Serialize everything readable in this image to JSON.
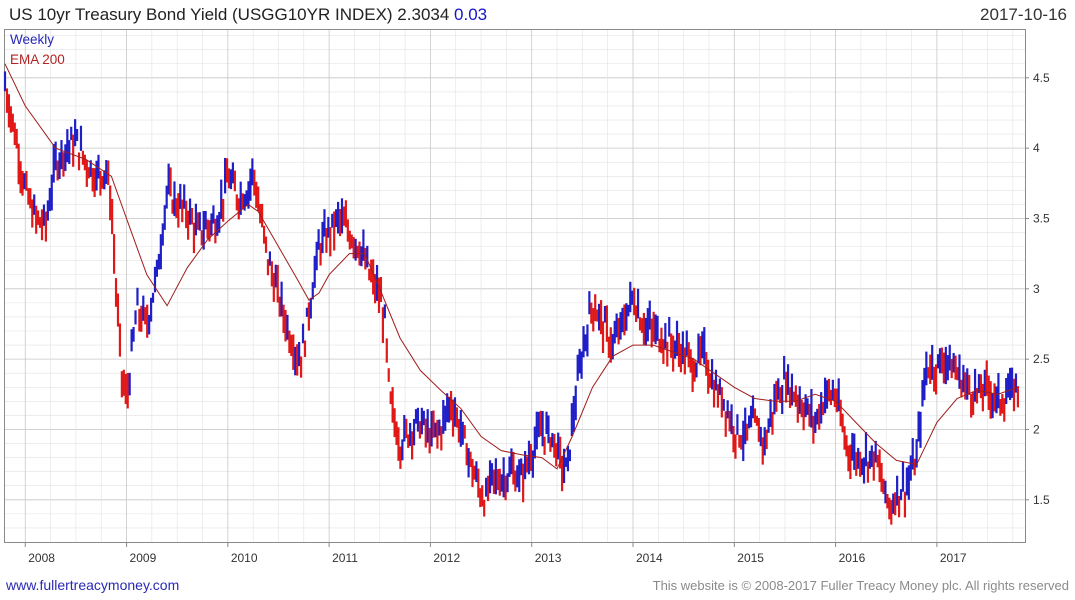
{
  "header": {
    "title": "US 10yr Treasury Bond Yield (USGG10YR INDEX) 2.3034",
    "change": "0.03",
    "date": "2017-10-16"
  },
  "legend": {
    "weekly": "Weekly",
    "ema": "EMA 200"
  },
  "footer": {
    "site": "www.fullertreacymoney.com",
    "copyright": "This website is © 2008-2017 Fuller Treacy Money plc. All rights reserved"
  },
  "colors": {
    "up": "#1f1fc8",
    "down": "#e01818",
    "ema": "#a01c1c",
    "grid": "#e2e2e2",
    "grid_major": "#c8c8c8"
  },
  "chart_data": {
    "type": "line",
    "xlim": [
      2007.8,
      2017.87
    ],
    "ylim": [
      1.2,
      4.84
    ],
    "y_ticks": [
      "1.5",
      "2",
      "2.5",
      "3",
      "3.5",
      "4",
      "4.5"
    ],
    "x_ticks": [
      "2008",
      "2009",
      "2010",
      "2011",
      "2012",
      "2013",
      "2014",
      "2015",
      "2016",
      "2017"
    ],
    "axis_side": "right",
    "grid": true,
    "legend_position": "top-left",
    "series": [
      {
        "name": "Weekly",
        "style": "weekly-bars",
        "x": [
          2007.8,
          2007.9,
          2008.0,
          2008.1,
          2008.2,
          2008.3,
          2008.4,
          2008.5,
          2008.6,
          2008.7,
          2008.8,
          2008.85,
          2008.9,
          2008.95,
          2009.0,
          2009.1,
          2009.2,
          2009.3,
          2009.4,
          2009.5,
          2009.6,
          2009.7,
          2009.8,
          2009.9,
          2010.0,
          2010.1,
          2010.2,
          2010.25,
          2010.3,
          2010.4,
          2010.5,
          2010.6,
          2010.7,
          2010.75,
          2010.8,
          2010.9,
          2011.0,
          2011.1,
          2011.2,
          2011.3,
          2011.4,
          2011.5,
          2011.55,
          2011.6,
          2011.7,
          2011.8,
          2011.9,
          2012.0,
          2012.1,
          2012.2,
          2012.3,
          2012.4,
          2012.5,
          2012.55,
          2012.6,
          2012.7,
          2012.8,
          2012.9,
          2013.0,
          2013.1,
          2013.2,
          2013.3,
          2013.35,
          2013.4,
          2013.5,
          2013.6,
          2013.7,
          2013.8,
          2013.9,
          2014.0,
          2014.1,
          2014.2,
          2014.3,
          2014.4,
          2014.5,
          2014.6,
          2014.7,
          2014.8,
          2014.9,
          2015.0,
          2015.1,
          2015.2,
          2015.3,
          2015.4,
          2015.5,
          2015.6,
          2015.7,
          2015.8,
          2015.9,
          2016.0,
          2016.1,
          2016.2,
          2016.3,
          2016.4,
          2016.5,
          2016.55,
          2016.6,
          2016.7,
          2016.8,
          2016.85,
          2016.9,
          2017.0,
          2017.1,
          2017.2,
          2017.3,
          2017.4,
          2017.5,
          2017.6,
          2017.7,
          2017.8
        ],
        "values": [
          4.45,
          4.1,
          3.7,
          3.5,
          3.45,
          3.9,
          4.0,
          4.05,
          3.9,
          3.8,
          3.85,
          3.6,
          2.95,
          2.4,
          2.2,
          2.85,
          2.75,
          3.1,
          3.7,
          3.6,
          3.55,
          3.4,
          3.45,
          3.5,
          3.8,
          3.65,
          3.7,
          3.85,
          3.6,
          3.2,
          2.95,
          2.7,
          2.5,
          2.6,
          2.85,
          3.3,
          3.4,
          3.5,
          3.4,
          3.3,
          3.1,
          2.95,
          2.75,
          2.2,
          1.9,
          2.0,
          2.05,
          1.95,
          2.0,
          2.2,
          2.0,
          1.75,
          1.55,
          1.5,
          1.65,
          1.65,
          1.7,
          1.65,
          1.85,
          2.0,
          1.95,
          1.75,
          1.7,
          2.05,
          2.55,
          2.9,
          2.75,
          2.6,
          2.75,
          2.95,
          2.75,
          2.7,
          2.65,
          2.6,
          2.55,
          2.45,
          2.55,
          2.3,
          2.2,
          2.0,
          1.95,
          2.05,
          1.9,
          2.2,
          2.35,
          2.25,
          2.15,
          2.05,
          2.25,
          2.25,
          1.9,
          1.8,
          1.8,
          1.8,
          1.5,
          1.45,
          1.55,
          1.6,
          1.8,
          2.15,
          2.45,
          2.45,
          2.5,
          2.4,
          2.3,
          2.25,
          2.3,
          2.2,
          2.25,
          2.3
        ]
      },
      {
        "name": "EMA 200",
        "style": "line",
        "x": [
          2007.8,
          2008.0,
          2008.3,
          2008.6,
          2008.85,
          2009.0,
          2009.2,
          2009.4,
          2009.6,
          2009.8,
          2010.0,
          2010.2,
          2010.3,
          2010.5,
          2010.7,
          2010.8,
          2010.9,
          2011.0,
          2011.2,
          2011.35,
          2011.5,
          2011.7,
          2011.9,
          2012.1,
          2012.3,
          2012.5,
          2012.7,
          2012.9,
          2013.1,
          2013.25,
          2013.4,
          2013.6,
          2013.8,
          2014.0,
          2014.2,
          2014.4,
          2014.6,
          2014.8,
          2015.0,
          2015.2,
          2015.4,
          2015.6,
          2015.8,
          2016.0,
          2016.2,
          2016.4,
          2016.6,
          2016.8,
          2017.0,
          2017.2,
          2017.4,
          2017.6,
          2017.8
        ],
        "values": [
          4.6,
          4.3,
          4.0,
          3.92,
          3.8,
          3.5,
          3.1,
          2.88,
          3.15,
          3.35,
          3.48,
          3.6,
          3.55,
          3.3,
          3.05,
          2.92,
          2.97,
          3.1,
          3.25,
          3.25,
          3.0,
          2.65,
          2.42,
          2.28,
          2.15,
          1.95,
          1.85,
          1.82,
          1.8,
          1.72,
          1.95,
          2.3,
          2.52,
          2.6,
          2.6,
          2.55,
          2.5,
          2.4,
          2.3,
          2.22,
          2.2,
          2.2,
          2.25,
          2.2,
          2.05,
          1.9,
          1.78,
          1.75,
          2.05,
          2.22,
          2.28,
          2.25,
          2.3
        ]
      }
    ]
  }
}
